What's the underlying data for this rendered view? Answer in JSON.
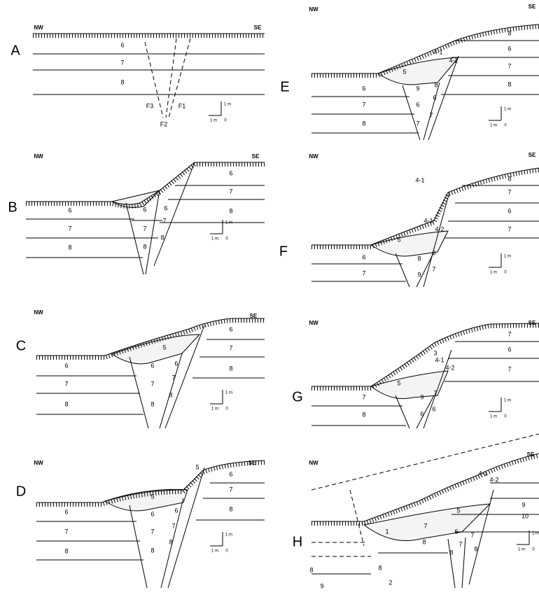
{
  "panels": [
    {
      "letter": "A",
      "nw": "NW",
      "se": "SE",
      "labels": [
        "6",
        "7",
        "8",
        "F3",
        "F1",
        "F2"
      ],
      "scale": [
        "1 m",
        "1 m",
        "0"
      ]
    },
    {
      "letter": "B",
      "nw": "NW",
      "se": "SE",
      "labels": [
        "6",
        "7",
        "8",
        "6",
        "7",
        "8",
        "6",
        "7",
        "8",
        "6",
        "7",
        "8"
      ],
      "scale": [
        "1 m",
        "1 m",
        "0"
      ]
    },
    {
      "letter": "C",
      "nw": "NW",
      "se": "SE",
      "labels": [
        "5",
        "6",
        "7",
        "8",
        "6",
        "7",
        "8",
        "6",
        "7",
        "8",
        "6",
        "7",
        "8"
      ],
      "scale": [
        "1 m",
        "1 m",
        "0"
      ]
    },
    {
      "letter": "D",
      "nw": "NW",
      "se": "SE",
      "labels": [
        "5",
        "5",
        "6",
        "7",
        "8",
        "6",
        "7",
        "8",
        "6",
        "7",
        "8",
        "6",
        "7",
        "8"
      ],
      "scale": [
        "1 m",
        "1 m",
        "0"
      ]
    },
    {
      "letter": "E",
      "nw": "NW",
      "se": "SE",
      "labels": [
        "4-1",
        "4-2",
        "5",
        "6",
        "7",
        "8",
        "9",
        "6",
        "7",
        "8",
        "6",
        "7",
        "8",
        "6",
        "7",
        "8"
      ],
      "scale": [
        "1 m",
        "1 m",
        "0"
      ]
    },
    {
      "letter": "F",
      "nw": "NW",
      "se": "SE",
      "labels": [
        "4-1",
        "4-1",
        "4-2",
        "5",
        "6",
        "7",
        "8",
        "9",
        "6",
        "7",
        "8",
        "7",
        "6",
        "7"
      ],
      "scale": [
        "1 m",
        "1 m",
        "0"
      ]
    },
    {
      "letter": "G",
      "nw": "NW",
      "se": "SE",
      "labels": [
        "3",
        "4-1",
        "4-2",
        "5",
        "7",
        "8",
        "9",
        "6",
        "7",
        "6",
        "7",
        "6",
        "7"
      ],
      "scale": [
        "1 m",
        "1 m",
        "0"
      ]
    },
    {
      "letter": "H",
      "nw": "NW",
      "se": "SE",
      "labels": [
        "1",
        "2",
        "5",
        "8",
        "7",
        "8",
        "6",
        "7",
        "8",
        "7",
        "8",
        "9",
        "10",
        "8",
        "9",
        "4-1",
        "4-2"
      ],
      "scale": [
        "1 m",
        "1 m",
        "0"
      ]
    }
  ]
}
